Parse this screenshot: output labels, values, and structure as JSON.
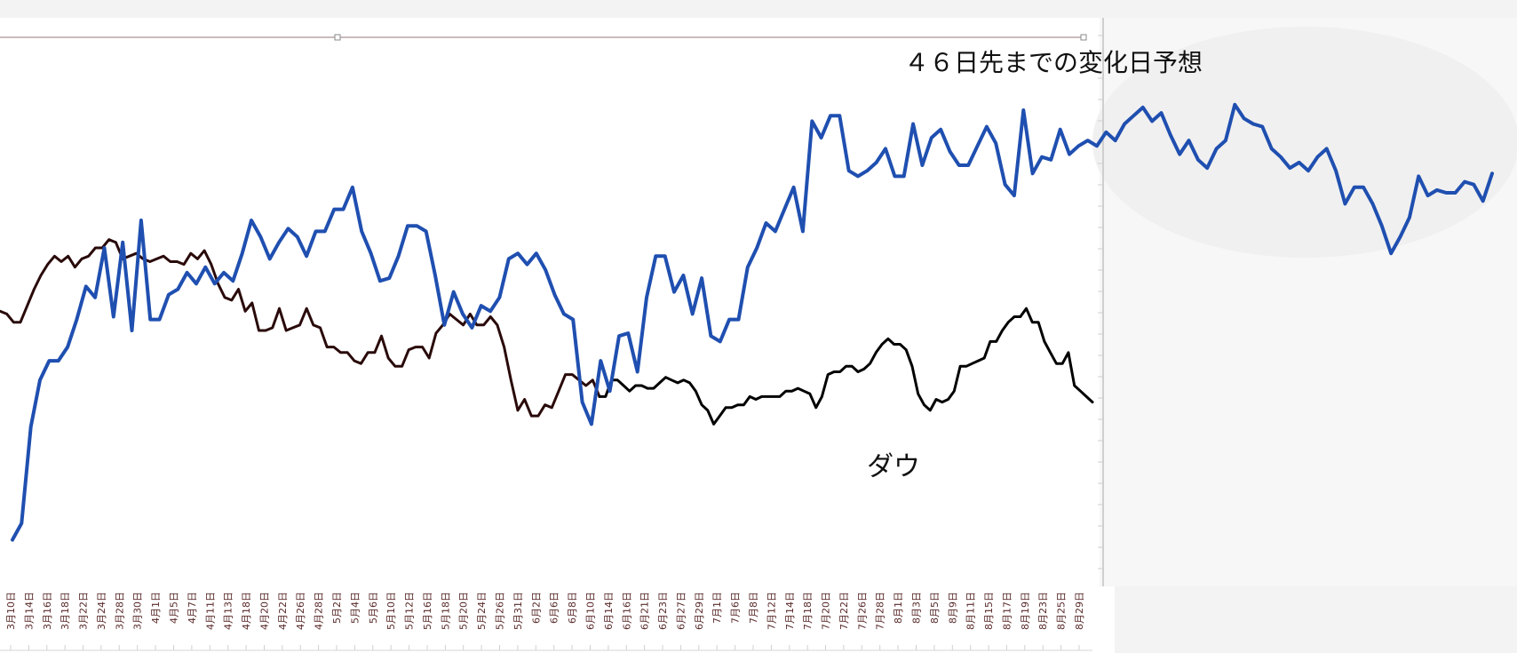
{
  "chart_data": {
    "type": "line",
    "title": "４６日先までの変化日予想",
    "annotation": "ダウ",
    "xlabel": "",
    "ylabel": "",
    "grid": false,
    "legend": "none",
    "colors": {
      "forecast": "#1f4fb0",
      "dow_history": "#2a0a0a",
      "dow_recent": "#000000",
      "plot_bg": "#ffffff",
      "page_bg": "#f3f3f3",
      "forecast_bg": "#f7f7f7"
    },
    "x_tick_labels": [
      "3月10日",
      "3月14日",
      "3月16日",
      "3月18日",
      "3月22日",
      "3月24日",
      "3月28日",
      "3月30日",
      "4月1日",
      "4月5日",
      "4月7日",
      "4月11日",
      "4月13日",
      "4月18日",
      "4月20日",
      "4月22日",
      "4月26日",
      "4月28日",
      "5月2日",
      "5月4日",
      "5月6日",
      "5月10日",
      "5月12日",
      "5月16日",
      "5月18日",
      "5月20日",
      "5月24日",
      "5月26日",
      "5月31日",
      "6月2日",
      "6月6日",
      "6月8日",
      "6月10日",
      "6月14日",
      "6月16日",
      "6月21日",
      "6月23日",
      "6月27日",
      "6月29日",
      "7月1日",
      "7月6日",
      "7月8日",
      "7月12日",
      "7月14日",
      "7月18日",
      "7月20日",
      "7月22日",
      "7月26日",
      "7月28日",
      "8月1日",
      "8月3日",
      "8月5日",
      "8月9日",
      "8月11日",
      "8月15日",
      "8月17日",
      "8月19日",
      "8月23日",
      "8月25日",
      "8月29日"
    ],
    "series": [
      {
        "role": "forecast",
        "values": [
          4,
          10,
          45,
          62,
          69,
          69,
          74,
          84,
          96,
          92,
          110,
          85,
          112,
          80,
          120,
          84,
          84,
          93,
          95,
          101,
          97,
          103,
          97,
          101,
          98,
          108,
          120,
          114,
          106,
          112,
          117,
          114,
          107,
          116,
          116,
          124,
          124,
          132,
          116,
          108,
          98,
          99,
          107,
          118,
          118,
          116,
          100,
          82,
          94,
          86,
          81,
          89,
          87,
          92,
          106,
          108,
          104,
          108,
          102,
          93,
          86,
          84,
          54,
          46,
          69,
          58,
          78,
          79,
          65,
          92,
          107,
          107,
          94,
          100,
          86,
          99,
          78,
          76,
          84,
          84,
          103,
          110,
          119,
          116,
          124,
          132,
          116,
          156,
          150,
          158,
          158,
          138,
          136,
          138,
          141,
          146,
          136,
          136,
          155,
          140,
          150,
          153,
          145,
          140,
          140,
          147,
          154,
          148,
          133,
          129,
          160,
          137,
          143,
          142,
          153,
          144,
          147,
          149,
          147,
          152,
          149,
          155,
          158,
          161,
          156,
          159,
          151,
          144,
          149,
          142,
          139,
          146,
          149,
          162,
          157,
          155,
          154,
          146,
          143,
          139,
          141,
          138,
          143,
          146,
          138,
          126,
          132,
          132,
          126,
          118,
          108,
          114,
          121,
          136,
          129,
          131,
          130,
          130,
          134,
          133,
          127,
          137
        ]
      },
      {
        "role": "dow_history",
        "values": [
          87,
          86,
          83,
          83,
          89,
          95,
          100,
          104,
          107,
          105,
          107,
          103,
          106,
          107,
          110,
          110,
          113,
          112,
          106,
          107,
          108,
          106,
          105,
          106,
          107,
          105,
          105,
          104,
          108,
          106,
          109,
          104,
          97,
          92,
          91,
          95,
          87,
          90,
          80,
          80,
          81,
          88,
          80,
          81,
          82,
          88,
          82,
          81,
          74,
          74,
          72,
          72,
          69,
          68,
          72,
          72,
          78,
          70,
          67,
          67,
          73,
          74,
          74,
          70,
          79,
          82,
          86,
          84,
          82,
          86,
          82,
          82,
          85,
          82,
          74,
          62,
          51,
          55,
          49,
          49,
          53,
          52,
          58,
          64,
          64,
          62,
          60,
          62,
          56
        ]
      },
      {
        "role": "dow_recent",
        "values": [
          56,
          56,
          62,
          62,
          60,
          58,
          60,
          60,
          59,
          59,
          61,
          63,
          62,
          61,
          62,
          61,
          58,
          53,
          51,
          46,
          49,
          52,
          52,
          53,
          53,
          56,
          55,
          56,
          56,
          56,
          56,
          58,
          58,
          59,
          58,
          57,
          52,
          56,
          64,
          65,
          65,
          67,
          67,
          65,
          66,
          68,
          72,
          75,
          77,
          75,
          75,
          73,
          67,
          57,
          53,
          51,
          55,
          54,
          55,
          58,
          67,
          67,
          68,
          69,
          70,
          76,
          76,
          80,
          83,
          85,
          85,
          88,
          83,
          83,
          76,
          72,
          68,
          68,
          72,
          60,
          58,
          56,
          54
        ]
      }
    ]
  }
}
